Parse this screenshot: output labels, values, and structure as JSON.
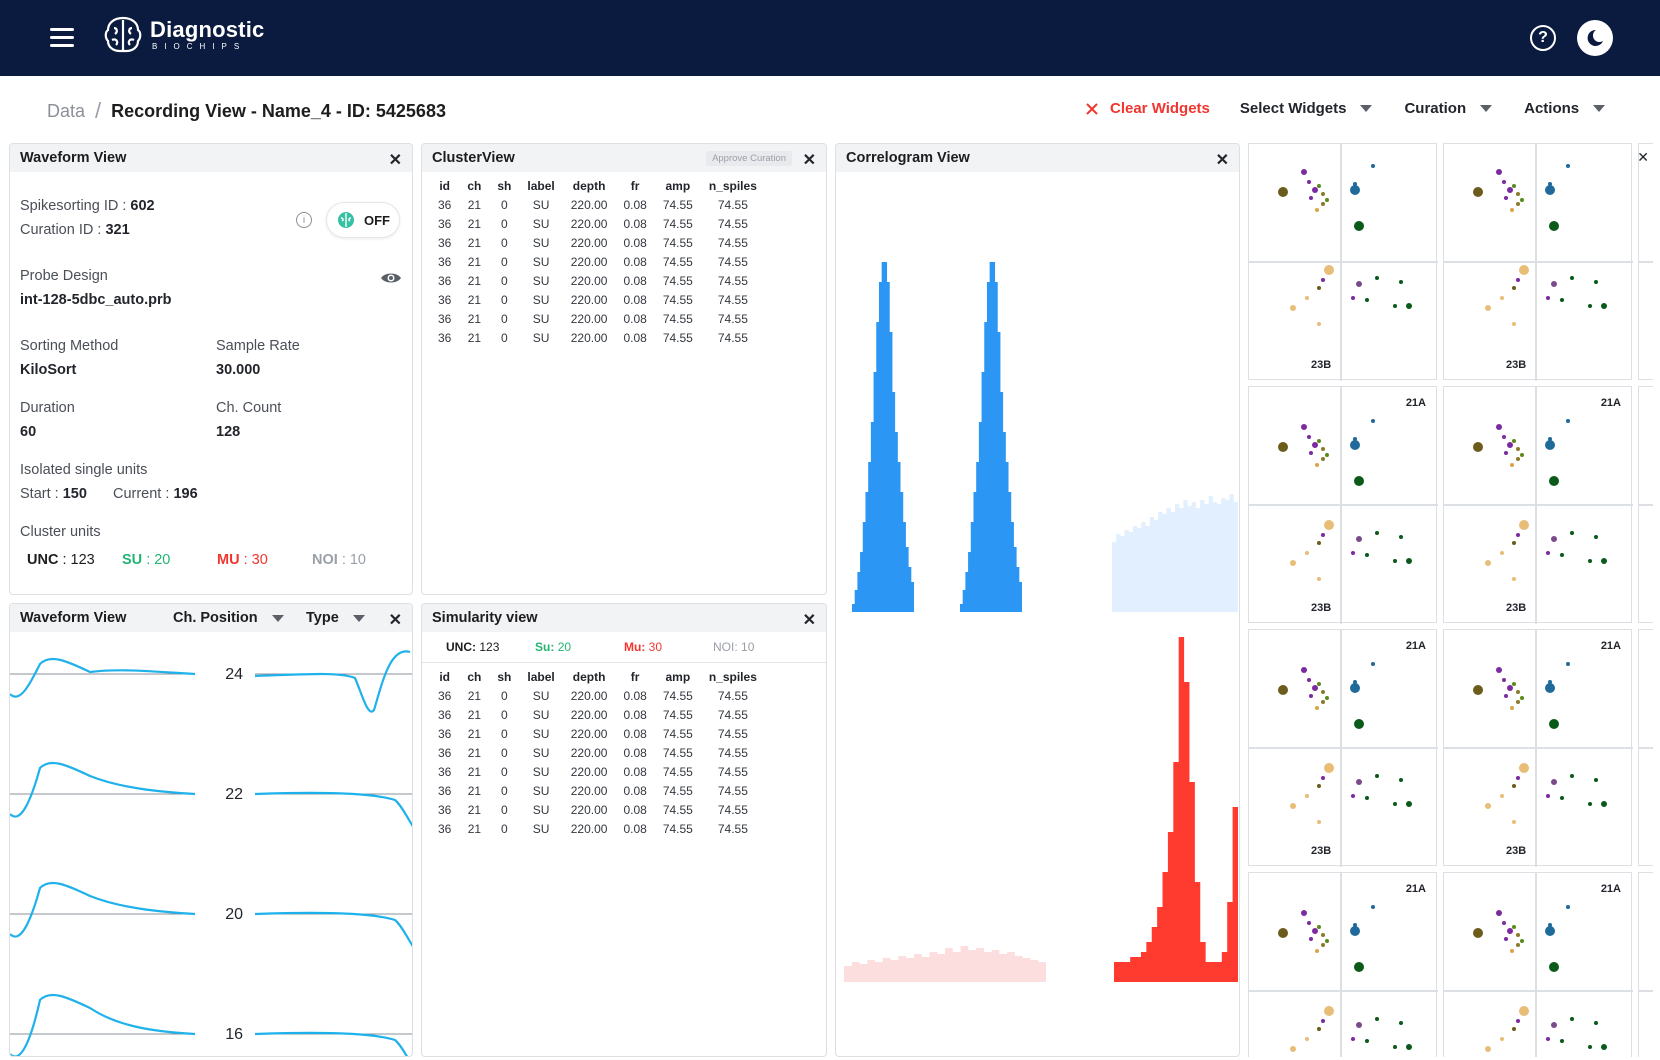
{
  "app": {
    "logo_name": "Diagnostic",
    "logo_sub": "BIOCHIPS",
    "help_glyph": "?"
  },
  "breadcrumb": {
    "root": "Data",
    "separator": "/",
    "current": "Recording View - Name_4 - ID: 5425683"
  },
  "toolbar": {
    "clear_widgets": "Clear Widgets",
    "select_widgets": "Select Widgets",
    "curation": "Curation",
    "actions": "Actions"
  },
  "waveform_info": {
    "title": "Waveform View",
    "spikesorting_label": "Spikesorting ID :",
    "spikesorting_val": "602",
    "curation_label": "Curation ID :",
    "curation_val": "321",
    "toggle_label": "OFF",
    "probe_label": "Probe Design",
    "probe_val": "int-128-5dbc_auto.prb",
    "sorting_label": "Sorting Method",
    "sorting_val": "KiloSort",
    "sample_label": "Sample Rate",
    "sample_val": "30.000",
    "duration_label": "Duration",
    "duration_val": "60",
    "chcount_label": "Ch. Count",
    "chcount_val": "128",
    "isolated_label": "Isolated single units",
    "start_label": "Start :",
    "start_val": "150",
    "current_label": "Current :",
    "current_val": "196",
    "cluster_label": "Cluster units",
    "unc_label": "UNC",
    "unc_val": ": 123",
    "su_label": "SU",
    "su_val": ": 20",
    "mu_label": "MU",
    "mu_val": ": 30",
    "noi_label": "NOI",
    "noi_val": ": 10"
  },
  "cluster_view": {
    "title": "ClusterView",
    "approve_label": "Approve Curation",
    "columns": [
      "id",
      "ch",
      "sh",
      "label",
      "depth",
      "fr",
      "amp",
      "n_spiles"
    ],
    "rows": [
      [
        "36",
        "21",
        "0",
        "SU",
        "220.00",
        "0.08",
        "74.55",
        "74.55"
      ],
      [
        "36",
        "21",
        "0",
        "SU",
        "220.00",
        "0.08",
        "74.55",
        "74.55"
      ],
      [
        "36",
        "21",
        "0",
        "SU",
        "220.00",
        "0.08",
        "74.55",
        "74.55"
      ],
      [
        "36",
        "21",
        "0",
        "SU",
        "220.00",
        "0.08",
        "74.55",
        "74.55"
      ],
      [
        "36",
        "21",
        "0",
        "SU",
        "220.00",
        "0.08",
        "74.55",
        "74.55"
      ],
      [
        "36",
        "21",
        "0",
        "SU",
        "220.00",
        "0.08",
        "74.55",
        "74.55"
      ],
      [
        "36",
        "21",
        "0",
        "SU",
        "220.00",
        "0.08",
        "74.55",
        "74.55"
      ],
      [
        "36",
        "21",
        "0",
        "SU",
        "220.00",
        "0.08",
        "74.55",
        "74.55"
      ]
    ]
  },
  "correlogram": {
    "title": "Correlogram View"
  },
  "waveform_plot": {
    "title": "Waveform View",
    "ch_position": "Ch. Position",
    "type": "Type",
    "channels": [
      "24",
      "22",
      "20",
      "16"
    ]
  },
  "similarity": {
    "title": "Simularity view",
    "unc": "UNC:",
    "unc_val": "123",
    "su": "Su:",
    "su_val": "20",
    "mu": "Mu:",
    "mu_val": "30",
    "noi": "NOI:",
    "noi_val": "10",
    "columns": [
      "id",
      "ch",
      "sh",
      "label",
      "depth",
      "fr",
      "amp",
      "n_spiles"
    ],
    "rows": [
      [
        "36",
        "21",
        "0",
        "SU",
        "220.00",
        "0.08",
        "74.55",
        "74.55"
      ],
      [
        "36",
        "21",
        "0",
        "SU",
        "220.00",
        "0.08",
        "74.55",
        "74.55"
      ],
      [
        "36",
        "21",
        "0",
        "SU",
        "220.00",
        "0.08",
        "74.55",
        "74.55"
      ],
      [
        "36",
        "21",
        "0",
        "SU",
        "220.00",
        "0.08",
        "74.55",
        "74.55"
      ],
      [
        "36",
        "21",
        "0",
        "SU",
        "220.00",
        "0.08",
        "74.55",
        "74.55"
      ],
      [
        "36",
        "21",
        "0",
        "SU",
        "220.00",
        "0.08",
        "74.55",
        "74.55"
      ],
      [
        "36",
        "21",
        "0",
        "SU",
        "220.00",
        "0.08",
        "74.55",
        "74.55"
      ],
      [
        "36",
        "21",
        "0",
        "SU",
        "220.00",
        "0.08",
        "74.55",
        "74.55"
      ]
    ]
  },
  "scatter_grid": {
    "top_label": "21A",
    "bottom_label": "23B"
  },
  "colors": {
    "navbar": "#0b1a3f",
    "danger": "#f0362f",
    "success": "#22b573",
    "blue_hist": "#2b96f3",
    "red_hist": "#ff3b30",
    "waveform": "#1fb2ea"
  }
}
